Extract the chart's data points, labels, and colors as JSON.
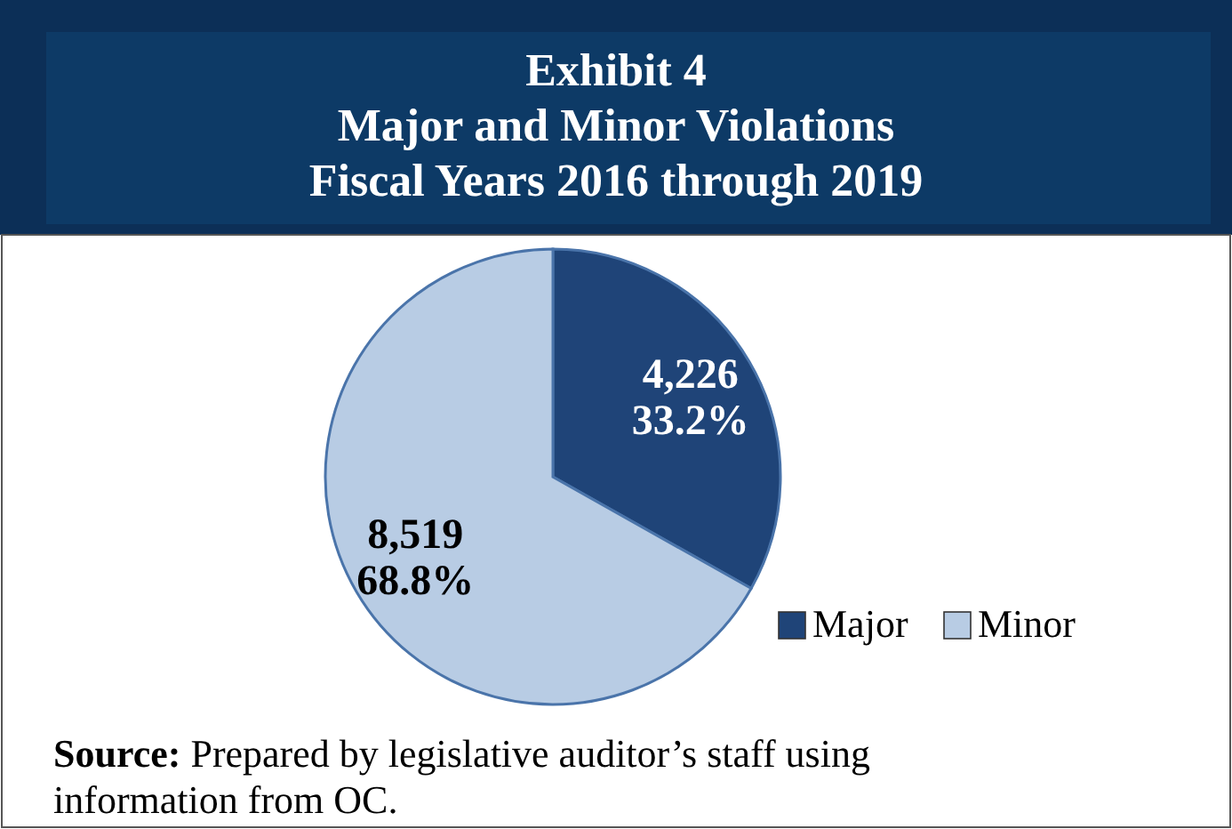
{
  "chart_data": {
    "type": "pie",
    "title": "Exhibit 4\nMajor and Minor Violations\nFiscal Years 2016 through 2019",
    "categories": [
      "Major",
      "Minor"
    ],
    "values": [
      4226,
      8519
    ],
    "colors": [
      "#1f4478",
      "#b8cce4"
    ],
    "value_labels": [
      "4,226\n33.2%",
      "8,519\n68.8%"
    ],
    "legend": "bottom right",
    "annotations": [
      "Source: Prepared by legislative auditor’s staff using\ninformation from OC."
    ]
  }
}
